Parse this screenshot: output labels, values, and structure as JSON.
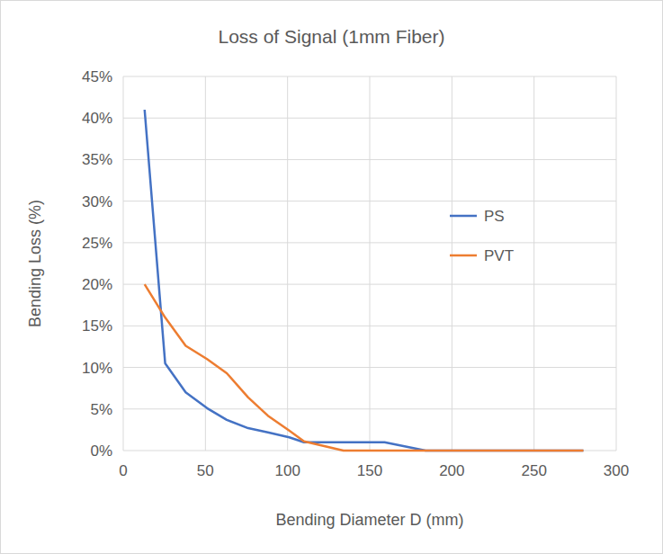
{
  "chart_data": {
    "type": "line",
    "title": "Loss of Signal (1mm Fiber)",
    "x_label": "Bending Diameter D (mm)",
    "y_label": "Bending Loss (%)",
    "x": [
      13,
      25.5,
      38,
      51,
      63,
      76,
      88,
      101,
      110,
      134,
      159,
      184,
      280
    ],
    "series": [
      {
        "name": "PS",
        "color": "#4472c4",
        "values": [
          41,
          10.5,
          7,
          5.1,
          3.7,
          2.7,
          2.2,
          1.6,
          1.0,
          1.0,
          1.0,
          0,
          0
        ]
      },
      {
        "name": "PVT",
        "color": "#ed7d31",
        "values": [
          20,
          16,
          12.6,
          11,
          9.3,
          6.4,
          4.2,
          2.4,
          1.1,
          0,
          0,
          0,
          0
        ]
      }
    ],
    "xlim": [
      0,
      300
    ],
    "xticks": [
      0,
      50,
      100,
      150,
      200,
      250,
      300
    ],
    "ylim": [
      0,
      45
    ],
    "yticks": [
      {
        "value": 0,
        "label": "0%"
      },
      {
        "value": 5,
        "label": "5%"
      },
      {
        "value": 10,
        "label": "10%"
      },
      {
        "value": 15,
        "label": "15%"
      },
      {
        "value": 20,
        "label": "20%"
      },
      {
        "value": 25,
        "label": "25%"
      },
      {
        "value": 30,
        "label": "30%"
      },
      {
        "value": 35,
        "label": "35%"
      },
      {
        "value": 40,
        "label": "40%"
      },
      {
        "value": 45,
        "label": "45%"
      }
    ],
    "grid": true,
    "legend": "right"
  }
}
